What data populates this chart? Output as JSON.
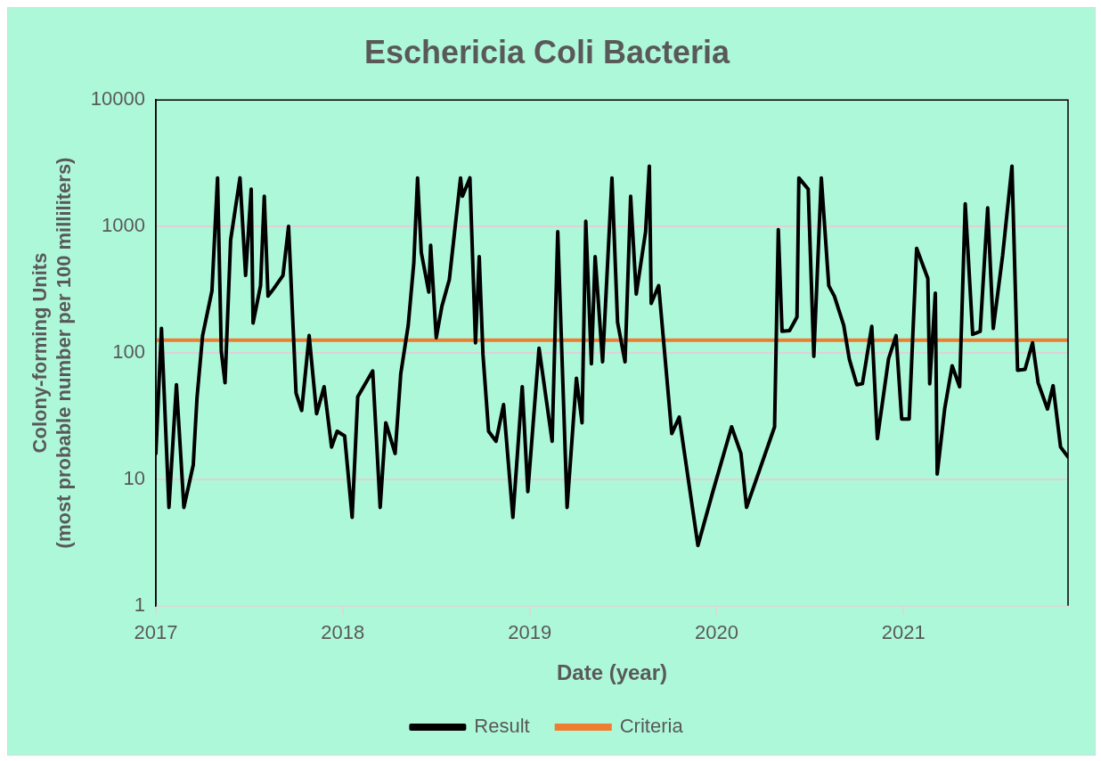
{
  "chart_data": {
    "type": "line",
    "title": "Eschericia Coli Bacteria",
    "xlabel": "Date (year)",
    "ylabel": "Colony-forming Units\n(most probable number per 100 milliliters)",
    "x": [
      2017.0,
      2017.03,
      2017.07,
      2017.11,
      2017.15,
      2017.2,
      2017.22,
      2017.25,
      2017.3,
      2017.33,
      2017.35,
      2017.37,
      2017.4,
      2017.45,
      2017.48,
      2017.51,
      2017.52,
      2017.56,
      2017.58,
      2017.6,
      2017.63,
      2017.68,
      2017.71,
      2017.75,
      2017.78,
      2017.82,
      2017.86,
      2017.9,
      2017.94,
      2017.97,
      2018.01,
      2018.05,
      2018.08,
      2018.16,
      2018.2,
      2018.23,
      2018.28,
      2018.31,
      2018.35,
      2018.38,
      2018.4,
      2018.42,
      2018.46,
      2018.47,
      2018.5,
      2018.53,
      2018.57,
      2018.63,
      2018.64,
      2018.68,
      2018.71,
      2018.73,
      2018.75,
      2018.78,
      2018.82,
      2018.86,
      2018.91,
      2018.96,
      2018.99,
      2019.05,
      2019.12,
      2019.15,
      2019.2,
      2019.25,
      2019.28,
      2019.3,
      2019.33,
      2019.35,
      2019.39,
      2019.44,
      2019.47,
      2019.51,
      2019.54,
      2019.57,
      2019.62,
      2019.64,
      2019.65,
      2019.69,
      2019.76,
      2019.8,
      2019.9,
      2019.98,
      2020.08,
      2020.13,
      2020.16,
      2020.31,
      2020.33,
      2020.35,
      2020.39,
      2020.43,
      2020.44,
      2020.49,
      2020.52,
      2020.56,
      2020.6,
      2020.63,
      2020.68,
      2020.71,
      2020.75,
      2020.78,
      2020.83,
      2020.86,
      2020.92,
      2020.96,
      2020.99,
      2021.03,
      2021.07,
      2021.13,
      2021.14,
      2021.17,
      2021.18,
      2021.22,
      2021.26,
      2021.3,
      2021.33,
      2021.37,
      2021.41,
      2021.45,
      2021.48,
      2021.53,
      2021.58,
      2021.61,
      2021.65,
      2021.69,
      2021.72,
      2021.77,
      2021.8,
      2021.84,
      2021.88
    ],
    "series": [
      {
        "name": "Result",
        "color": "#000000",
        "values": [
          16,
          156,
          6,
          56,
          6,
          13,
          44,
          137,
          309,
          2420,
          103,
          58,
          780,
          2420,
          410,
          1970,
          172,
          340,
          1730,
          281,
          321,
          410,
          1000,
          48,
          35,
          137,
          33,
          54,
          18,
          24,
          22,
          5,
          45,
          72,
          6,
          28,
          16,
          68,
          165,
          515,
          2420,
          622,
          303,
          710,
          132,
          233,
          380,
          2420,
          1730,
          2420,
          120,
          577,
          97,
          24,
          20,
          39,
          5,
          54,
          8,
          109,
          20,
          908,
          6,
          63,
          28,
          1100,
          82,
          577,
          85,
          2420,
          175,
          85,
          1730,
          292,
          908,
          3000,
          246,
          340,
          23,
          31,
          3,
          8,
          26,
          16,
          6,
          26,
          944,
          148,
          150,
          192,
          2420,
          1970,
          94,
          2420,
          340,
          281,
          165,
          89,
          56,
          57,
          162,
          21,
          90,
          137,
          30,
          30,
          671,
          388,
          57,
          297,
          11,
          36,
          79,
          54,
          1510,
          140,
          148,
          1400,
          156,
          588,
          3000,
          73,
          74,
          120,
          58,
          36,
          55,
          18,
          15
        ]
      }
    ],
    "ref_lines": [
      {
        "axis": "y",
        "value": 126,
        "label": "Criteria",
        "color": "#ed7d31"
      }
    ],
    "xlim": [
      2017,
      2021.88
    ],
    "xticks": [
      2017,
      2018,
      2019,
      2020,
      2021
    ],
    "ylim": [
      1,
      10000
    ],
    "yticks": [
      1,
      10,
      100,
      1000,
      10000
    ],
    "log": "y",
    "grid": "y",
    "legend": "bottom",
    "marker": "none",
    "line_style": "solid"
  }
}
